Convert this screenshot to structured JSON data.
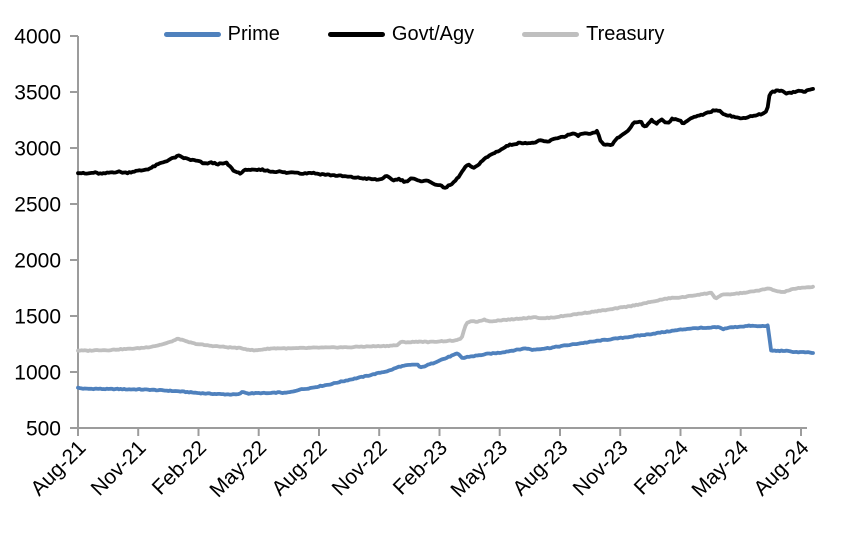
{
  "chart_data": {
    "type": "line",
    "title": "",
    "grid": "off",
    "axis_color": "#9C9C9C",
    "x_axis": {
      "unit": "month",
      "tick_labels": [
        "Aug-21",
        "Nov-21",
        "Feb-22",
        "May-22",
        "Aug-22",
        "Nov-22",
        "Feb-23",
        "May-23",
        "Aug-23",
        "Nov-23",
        "Feb-24",
        "May-24",
        "Aug-24"
      ],
      "range_months_from_aug21": [
        0,
        36.6
      ]
    },
    "y_axis": {
      "min": 500,
      "max": 4000,
      "tick_interval": 500,
      "ticks": [
        500,
        1000,
        1500,
        2000,
        2500,
        3000,
        3500,
        4000
      ]
    },
    "legend": {
      "position": "top",
      "entries": [
        {
          "label": "Prime",
          "color": "#4F81BD"
        },
        {
          "label": "Govt/Agy",
          "color": "#000000"
        },
        {
          "label": "Treasury",
          "color": "#BFBFBF"
        }
      ]
    },
    "series": [
      {
        "name": "Prime",
        "color": "#4F81BD",
        "points": [
          [
            0,
            858
          ],
          [
            0.3,
            850
          ],
          [
            1,
            850
          ],
          [
            1.5,
            847
          ],
          [
            2,
            848
          ],
          [
            2.5,
            845
          ],
          [
            3,
            845
          ],
          [
            3.5,
            842
          ],
          [
            4,
            838
          ],
          [
            4.5,
            833
          ],
          [
            5,
            828
          ],
          [
            5.5,
            820
          ],
          [
            6,
            812
          ],
          [
            6.5,
            807
          ],
          [
            7,
            803
          ],
          [
            7.5,
            800
          ],
          [
            8,
            800
          ],
          [
            8.2,
            824
          ],
          [
            8.45,
            808
          ],
          [
            9,
            812
          ],
          [
            9.5,
            810
          ],
          [
            10,
            818
          ],
          [
            10.3,
            812
          ],
          [
            10.7,
            825
          ],
          [
            11,
            842
          ],
          [
            11.5,
            855
          ],
          [
            12,
            872
          ],
          [
            12.5,
            888
          ],
          [
            13,
            910
          ],
          [
            13.5,
            930
          ],
          [
            14,
            950
          ],
          [
            14.5,
            970
          ],
          [
            15,
            992
          ],
          [
            15.5,
            1012
          ],
          [
            16,
            1048
          ],
          [
            16.4,
            1060
          ],
          [
            16.9,
            1068
          ],
          [
            17.05,
            1038
          ],
          [
            17.4,
            1062
          ],
          [
            17.7,
            1080
          ],
          [
            18,
            1105
          ],
          [
            18.3,
            1122
          ],
          [
            18.6,
            1145
          ],
          [
            18.9,
            1165
          ],
          [
            19.15,
            1122
          ],
          [
            19.4,
            1135
          ],
          [
            19.7,
            1142
          ],
          [
            20,
            1150
          ],
          [
            20.4,
            1162
          ],
          [
            21,
            1172
          ],
          [
            21.5,
            1188
          ],
          [
            22,
            1202
          ],
          [
            22.3,
            1212
          ],
          [
            22.6,
            1198
          ],
          [
            23,
            1206
          ],
          [
            23.5,
            1215
          ],
          [
            24,
            1230
          ],
          [
            24.5,
            1242
          ],
          [
            25,
            1256
          ],
          [
            25.5,
            1268
          ],
          [
            26,
            1281
          ],
          [
            26.5,
            1292
          ],
          [
            27,
            1303
          ],
          [
            27.5,
            1315
          ],
          [
            28,
            1327
          ],
          [
            28.5,
            1338
          ],
          [
            29,
            1352
          ],
          [
            29.5,
            1365
          ],
          [
            30,
            1378
          ],
          [
            30.5,
            1388
          ],
          [
            31,
            1394
          ],
          [
            31.3,
            1390
          ],
          [
            31.6,
            1398
          ],
          [
            31.9,
            1400
          ],
          [
            32.1,
            1383
          ],
          [
            32.4,
            1396
          ],
          [
            33,
            1406
          ],
          [
            33.5,
            1413
          ],
          [
            33.8,
            1408
          ],
          [
            34.1,
            1410
          ],
          [
            34.35,
            1414
          ],
          [
            34.5,
            1192
          ],
          [
            34.8,
            1188
          ],
          [
            35.2,
            1190
          ],
          [
            35.5,
            1182
          ],
          [
            35.8,
            1178
          ],
          [
            36.2,
            1176
          ],
          [
            36.6,
            1170
          ]
        ]
      },
      {
        "name": "Govt/Agy",
        "color": "#000000",
        "points": [
          [
            0,
            2780
          ],
          [
            0.4,
            2770
          ],
          [
            0.8,
            2780
          ],
          [
            1.2,
            2768
          ],
          [
            1.6,
            2782
          ],
          [
            2,
            2788
          ],
          [
            2.4,
            2778
          ],
          [
            2.8,
            2792
          ],
          [
            3.2,
            2800
          ],
          [
            3.6,
            2818
          ],
          [
            4,
            2855
          ],
          [
            4.5,
            2892
          ],
          [
            5,
            2930
          ],
          [
            5.3,
            2910
          ],
          [
            5.6,
            2895
          ],
          [
            6,
            2882
          ],
          [
            6.3,
            2858
          ],
          [
            6.6,
            2870
          ],
          [
            7,
            2856
          ],
          [
            7.4,
            2865
          ],
          [
            7.8,
            2790
          ],
          [
            8.1,
            2775
          ],
          [
            8.4,
            2810
          ],
          [
            8.8,
            2800
          ],
          [
            9.2,
            2806
          ],
          [
            9.6,
            2790
          ],
          [
            10,
            2790
          ],
          [
            10.4,
            2778
          ],
          [
            10.8,
            2785
          ],
          [
            11.2,
            2772
          ],
          [
            11.6,
            2780
          ],
          [
            12,
            2768
          ],
          [
            12.5,
            2760
          ],
          [
            13,
            2752
          ],
          [
            13.5,
            2742
          ],
          [
            14,
            2733
          ],
          [
            14.5,
            2724
          ],
          [
            15,
            2716
          ],
          [
            15.35,
            2748
          ],
          [
            15.7,
            2712
          ],
          [
            16,
            2724
          ],
          [
            16.3,
            2696
          ],
          [
            16.6,
            2732
          ],
          [
            17,
            2702
          ],
          [
            17.3,
            2714
          ],
          [
            17.6,
            2690
          ],
          [
            18,
            2664
          ],
          [
            18.3,
            2646
          ],
          [
            18.6,
            2675
          ],
          [
            18.85,
            2720
          ],
          [
            19.1,
            2780
          ],
          [
            19.3,
            2835
          ],
          [
            19.5,
            2848
          ],
          [
            19.7,
            2815
          ],
          [
            19.9,
            2848
          ],
          [
            20.2,
            2898
          ],
          [
            20.6,
            2945
          ],
          [
            21,
            2980
          ],
          [
            21.4,
            3022
          ],
          [
            21.8,
            3040
          ],
          [
            22.2,
            3048
          ],
          [
            22.6,
            3042
          ],
          [
            23,
            3065
          ],
          [
            23.4,
            3055
          ],
          [
            23.8,
            3088
          ],
          [
            24.2,
            3102
          ],
          [
            24.6,
            3128
          ],
          [
            24.9,
            3112
          ],
          [
            25.2,
            3132
          ],
          [
            25.5,
            3120
          ],
          [
            25.85,
            3148
          ],
          [
            26.05,
            3048
          ],
          [
            26.3,
            3025
          ],
          [
            26.6,
            3032
          ],
          [
            26.85,
            3085
          ],
          [
            27.1,
            3118
          ],
          [
            27.45,
            3165
          ],
          [
            27.65,
            3225
          ],
          [
            28,
            3242
          ],
          [
            28.25,
            3180
          ],
          [
            28.55,
            3255
          ],
          [
            28.8,
            3218
          ],
          [
            29.05,
            3252
          ],
          [
            29.35,
            3222
          ],
          [
            29.6,
            3262
          ],
          [
            29.9,
            3252
          ],
          [
            30.15,
            3220
          ],
          [
            30.5,
            3262
          ],
          [
            30.8,
            3282
          ],
          [
            31.1,
            3295
          ],
          [
            31.4,
            3318
          ],
          [
            31.8,
            3342
          ],
          [
            32.2,
            3302
          ],
          [
            32.6,
            3282
          ],
          [
            33,
            3262
          ],
          [
            33.4,
            3280
          ],
          [
            33.9,
            3298
          ],
          [
            34.15,
            3310
          ],
          [
            34.3,
            3324
          ],
          [
            34.45,
            3490
          ],
          [
            34.7,
            3508
          ],
          [
            35,
            3512
          ],
          [
            35.3,
            3490
          ],
          [
            35.6,
            3498
          ],
          [
            35.9,
            3510
          ],
          [
            36.2,
            3505
          ],
          [
            36.6,
            3528
          ]
        ]
      },
      {
        "name": "Treasury",
        "color": "#BFBFBF",
        "points": [
          [
            0,
            1192
          ],
          [
            0.5,
            1190
          ],
          [
            1,
            1196
          ],
          [
            1.5,
            1195
          ],
          [
            2,
            1202
          ],
          [
            2.5,
            1206
          ],
          [
            3,
            1212
          ],
          [
            3.5,
            1222
          ],
          [
            4,
            1238
          ],
          [
            4.5,
            1262
          ],
          [
            5,
            1298
          ],
          [
            5.35,
            1275
          ],
          [
            5.7,
            1258
          ],
          [
            6,
            1248
          ],
          [
            6.5,
            1236
          ],
          [
            7,
            1228
          ],
          [
            7.5,
            1220
          ],
          [
            8,
            1215
          ],
          [
            8.5,
            1200
          ],
          [
            8.8,
            1192
          ],
          [
            9.2,
            1202
          ],
          [
            9.6,
            1210
          ],
          [
            10,
            1212
          ],
          [
            10.5,
            1210
          ],
          [
            11,
            1213
          ],
          [
            11.5,
            1215
          ],
          [
            12,
            1218
          ],
          [
            12.5,
            1218
          ],
          [
            13,
            1221
          ],
          [
            13.5,
            1220
          ],
          [
            14,
            1226
          ],
          [
            14.5,
            1228
          ],
          [
            15,
            1231
          ],
          [
            15.5,
            1234
          ],
          [
            15.9,
            1240
          ],
          [
            16.1,
            1268
          ],
          [
            16.5,
            1266
          ],
          [
            17,
            1272
          ],
          [
            17.5,
            1267
          ],
          [
            18,
            1274
          ],
          [
            18.5,
            1278
          ],
          [
            18.9,
            1283
          ],
          [
            19.1,
            1305
          ],
          [
            19.35,
            1440
          ],
          [
            19.6,
            1452
          ],
          [
            19.9,
            1450
          ],
          [
            20.2,
            1468
          ],
          [
            20.5,
            1452
          ],
          [
            20.8,
            1458
          ],
          [
            21.2,
            1465
          ],
          [
            21.6,
            1470
          ],
          [
            22,
            1478
          ],
          [
            22.4,
            1483
          ],
          [
            22.75,
            1493
          ],
          [
            23.05,
            1478
          ],
          [
            23.4,
            1483
          ],
          [
            23.7,
            1488
          ],
          [
            24,
            1496
          ],
          [
            24.5,
            1508
          ],
          [
            25,
            1522
          ],
          [
            25.5,
            1534
          ],
          [
            26,
            1547
          ],
          [
            26.5,
            1558
          ],
          [
            27,
            1574
          ],
          [
            27.5,
            1588
          ],
          [
            28,
            1606
          ],
          [
            28.5,
            1624
          ],
          [
            29,
            1644
          ],
          [
            29.4,
            1658
          ],
          [
            29.8,
            1663
          ],
          [
            30.2,
            1670
          ],
          [
            30.6,
            1682
          ],
          [
            31,
            1694
          ],
          [
            31.3,
            1700
          ],
          [
            31.55,
            1708
          ],
          [
            31.75,
            1655
          ],
          [
            32.05,
            1688
          ],
          [
            32.5,
            1694
          ],
          [
            33,
            1704
          ],
          [
            33.5,
            1716
          ],
          [
            34,
            1732
          ],
          [
            34.4,
            1745
          ],
          [
            34.8,
            1722
          ],
          [
            35.1,
            1712
          ],
          [
            35.4,
            1730
          ],
          [
            35.8,
            1748
          ],
          [
            36.2,
            1752
          ],
          [
            36.6,
            1762
          ]
        ]
      }
    ]
  }
}
